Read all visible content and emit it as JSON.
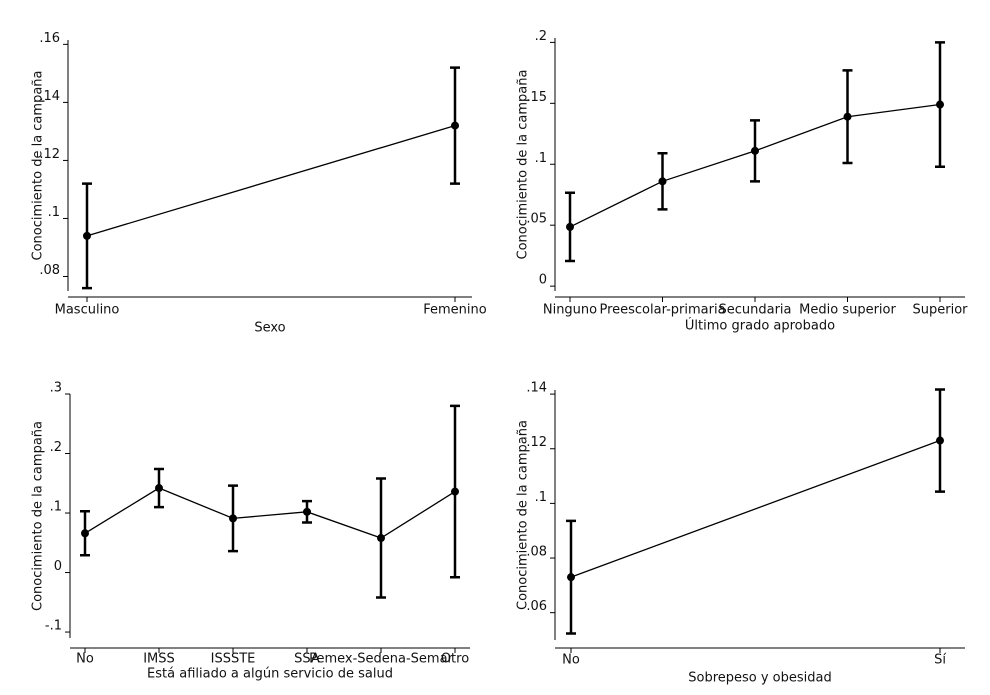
{
  "chart_data": [
    {
      "type": "line",
      "color": "#000000",
      "x_label": "Sexo",
      "y_label": "Conocimiento de la campaña",
      "categories": [
        "Masculino",
        "Femenino"
      ],
      "values": [
        0.094,
        0.132
      ],
      "errors": [
        0.018,
        0.02
      ],
      "ylim": [
        0.075,
        0.1615
      ],
      "yticks": [
        {
          "value": 0.08,
          "label": ".08"
        },
        {
          "value": 0.1,
          "label": ".1"
        },
        {
          "value": 0.12,
          "label": ".12"
        },
        {
          "value": 0.14,
          "label": ".14"
        },
        {
          "value": 0.16,
          "label": ".16"
        }
      ]
    },
    {
      "type": "line",
      "color": "#000000",
      "x_label": "Último grado aprobado",
      "y_label": "Conocimiento de la campaña",
      "categories": [
        "Ninguno",
        "Preescolar-primaria",
        "Secundaria",
        "Medio superior",
        "Superior"
      ],
      "values": [
        0.0486,
        0.086,
        0.111,
        0.139,
        0.149
      ],
      "errors": [
        0.028,
        0.023,
        0.025,
        0.038,
        0.051
      ],
      "ylim": [
        -0.004,
        0.2036
      ],
      "yticks": [
        0,
        {
          "value": 0.05,
          "label": ".05"
        },
        {
          "value": 0.1,
          "label": ".1"
        },
        {
          "value": 0.15,
          "label": ".15"
        },
        {
          "value": 0.2,
          "label": ".2"
        }
      ]
    },
    {
      "type": "line",
      "color": "#000000",
      "x_label": "Está afiliado a algún servicio de salud",
      "y_label": "Conocimiento de la campaña",
      "categories": [
        "No",
        "IMSS",
        "ISSSTE",
        "SSA",
        "Pemex-Sedena-Semar",
        "Otro"
      ],
      "values": [
        0.066,
        0.142,
        0.091,
        0.102,
        0.058,
        0.136
      ],
      "errors": [
        0.037,
        0.032,
        0.055,
        0.018,
        0.1,
        0.144
      ],
      "ylim": [
        -0.11,
        0.3
      ],
      "yticks": [
        {
          "value": -0.1,
          "label": "-.1"
        },
        0,
        {
          "value": 0.1,
          "label": ".1"
        },
        {
          "value": 0.2,
          "label": ".2"
        },
        {
          "value": 0.3,
          "label": ".3"
        }
      ]
    },
    {
      "type": "line",
      "color": "#000000",
      "x_label": "Sobrepeso y obesidad",
      "y_label": "Conocimiento de la campaña",
      "categories": [
        "No",
        "Sí"
      ],
      "values": [
        0.073,
        0.123
      ],
      "errors": [
        0.0206,
        0.0187
      ],
      "ylim": [
        0.05,
        0.1415
      ],
      "yticks": [
        {
          "value": 0.06,
          "label": ".06"
        },
        {
          "value": 0.08,
          "label": ".08"
        },
        {
          "value": 0.1,
          "label": ".1"
        },
        {
          "value": 0.12,
          "label": ".12"
        },
        {
          "value": 0.14,
          "label": ".14"
        }
      ]
    }
  ]
}
